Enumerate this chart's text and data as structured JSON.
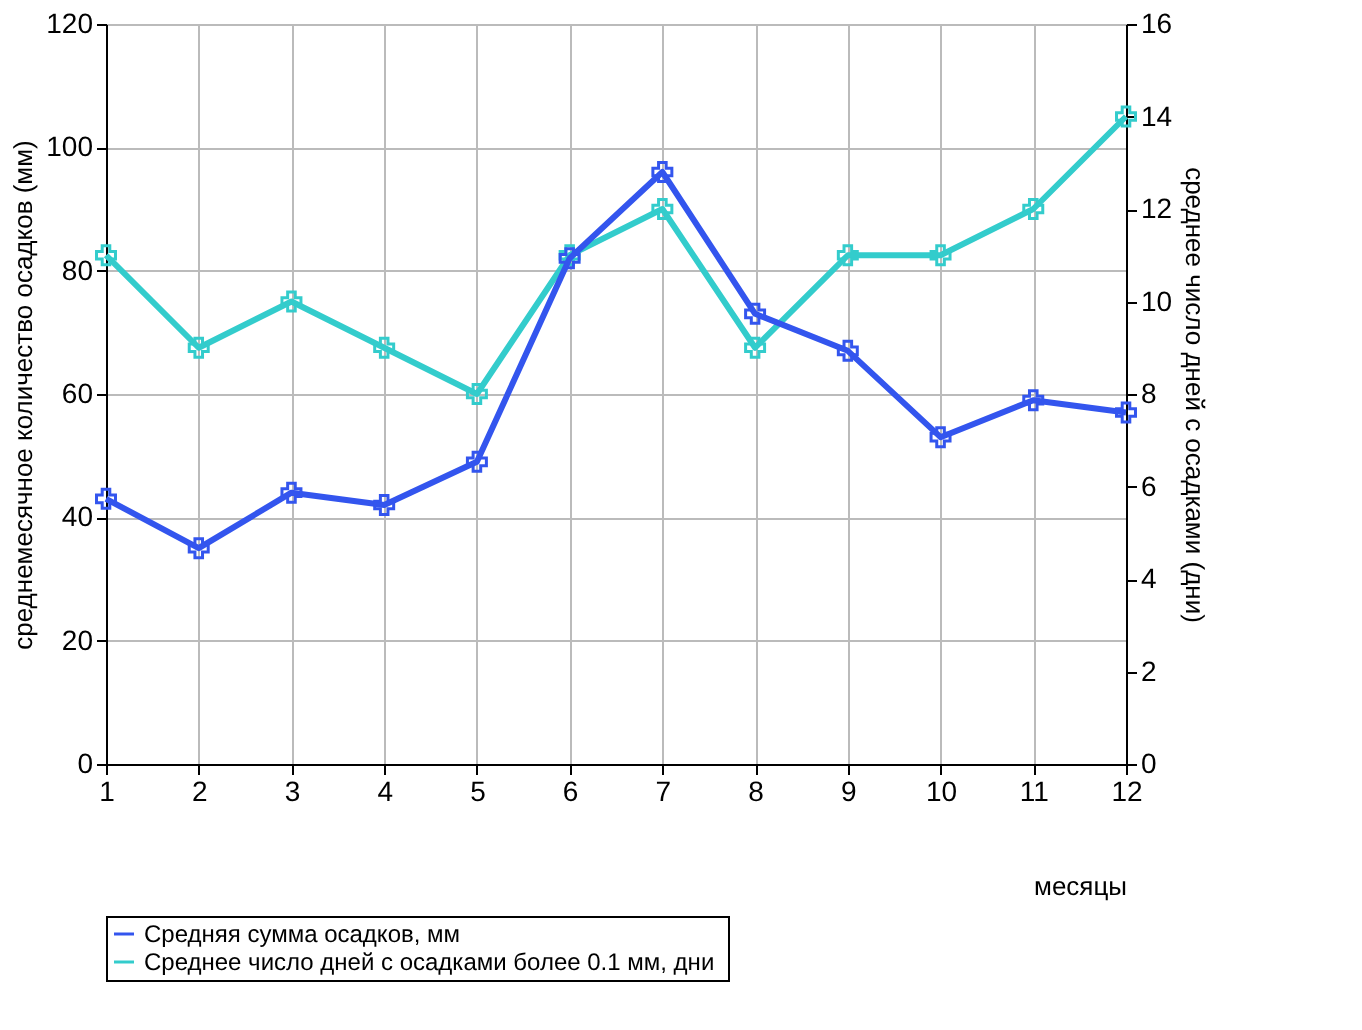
{
  "chart_data": {
    "type": "line",
    "xlabel": "месяцы",
    "ylabel": "среднемесячное количество осадков (мм)",
    "y2label": "среднее число дней с осадками (дни)",
    "x": [
      1,
      2,
      3,
      4,
      5,
      6,
      7,
      8,
      9,
      10,
      11,
      12
    ],
    "series": [
      {
        "name": "Средняя сумма осадков, мм",
        "color": "#3355ee",
        "values": [
          43,
          35,
          44,
          42,
          49,
          82,
          96,
          73,
          67,
          53,
          59,
          57
        ]
      },
      {
        "name": "Среднее число дней с  осадками более 0.1 мм, дни",
        "color": "#33cccc",
        "axis": "y2",
        "values": [
          11,
          9,
          10,
          9,
          8,
          11,
          12,
          9,
          11,
          11,
          12,
          14
        ]
      }
    ],
    "xlim": [
      1,
      12
    ],
    "xticks": [
      1,
      2,
      3,
      4,
      5,
      6,
      7,
      8,
      9,
      10,
      11,
      12
    ],
    "ylim": [
      0,
      120
    ],
    "yticks": [
      0,
      20,
      40,
      60,
      80,
      100,
      120
    ],
    "y2lim": [
      0,
      16
    ],
    "y2ticks": [
      0,
      2,
      4,
      6,
      8,
      10,
      12,
      14,
      16
    ],
    "grid": true,
    "legend": "bottom",
    "marker": "cross",
    "line_style": "solid"
  }
}
